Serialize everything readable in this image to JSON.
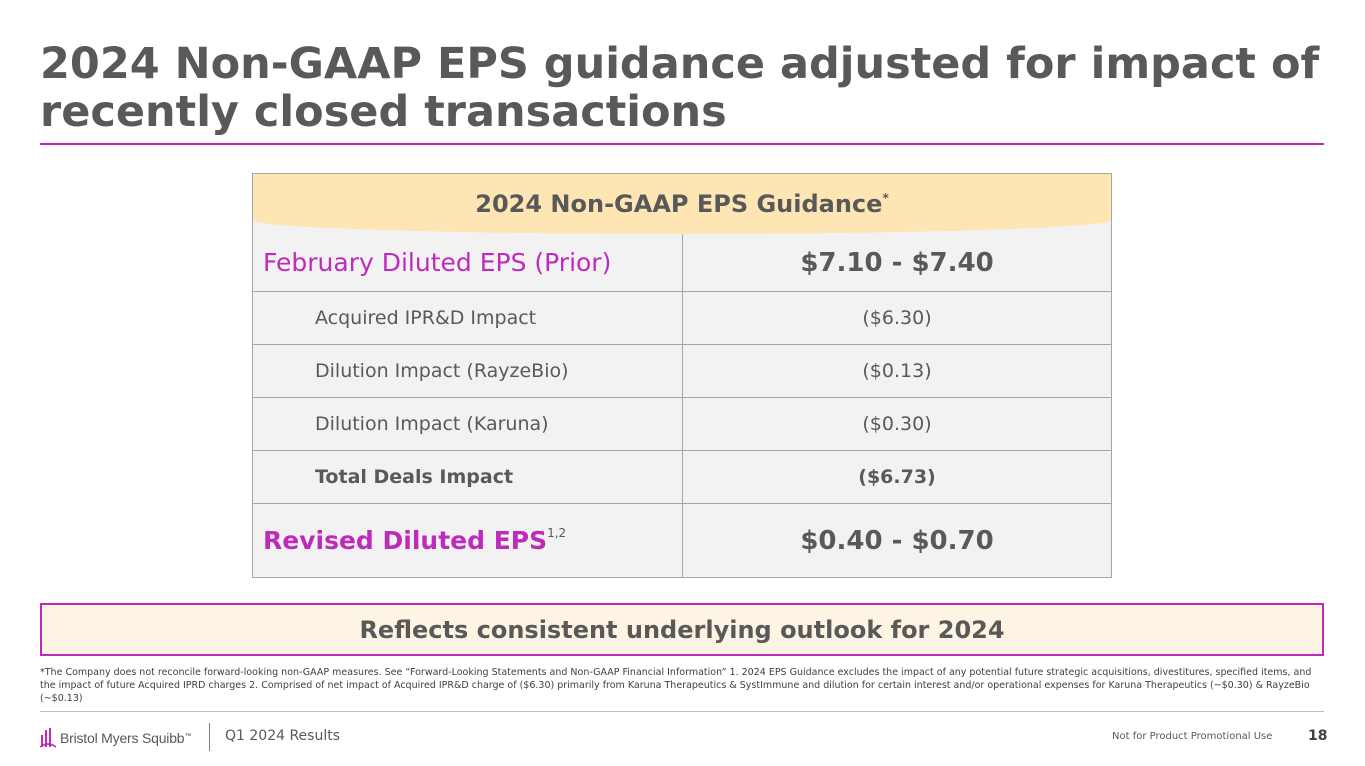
{
  "slide": {
    "title_line1": "2024 Non-GAAP EPS guidance adjusted for impact of",
    "title_line2": "recently closed transactions"
  },
  "table": {
    "header": "2024 Non-GAAP EPS Guidance",
    "header_marker": "*",
    "rows": [
      {
        "label": "February Diluted EPS (Prior)",
        "value": "$7.10 - $7.40"
      },
      {
        "label": "Acquired IPR&D Impact",
        "value": "($6.30)"
      },
      {
        "label": "Dilution Impact (RayzeBio)",
        "value": "($0.13)"
      },
      {
        "label": "Dilution Impact (Karuna)",
        "value": "($0.30)"
      },
      {
        "label": "Total Deals Impact",
        "value": "($6.73)"
      },
      {
        "label": "Revised Diluted EPS",
        "label_sup": "1,2",
        "value": "$0.40 - $0.70"
      }
    ]
  },
  "callout": "Reflects consistent underlying outlook for 2024",
  "footnote": "*The Company does not reconcile forward-looking non-GAAP measures. See “Forward-Looking Statements and Non-GAAP Financial Information” 1. 2024 EPS Guidance excludes the impact of any potential future strategic acquisitions, divestitures, specified items, and the impact of future Acquired IPRD charges 2. Comprised of net impact of Acquired IPR&D charge of ($6.30) primarily from Karuna Therapeutics & SystImmune and dilution for certain interest and/or operational expenses for Karuna Therapeutics (~$0.30) & RayzeBio (~$0.13)",
  "footer": {
    "brand": "Bristol Myers Squibb",
    "brand_tm": "™",
    "section": "Q1 2024 Results",
    "disclaimer": "Not for Product Promotional Use",
    "page_number": "18"
  },
  "colors": {
    "accent": "#be2bbb",
    "header_fill": "#fde5b4",
    "callout_fill": "#fdf4e3",
    "table_fill": "#f2f2f2",
    "text": "#595959"
  }
}
